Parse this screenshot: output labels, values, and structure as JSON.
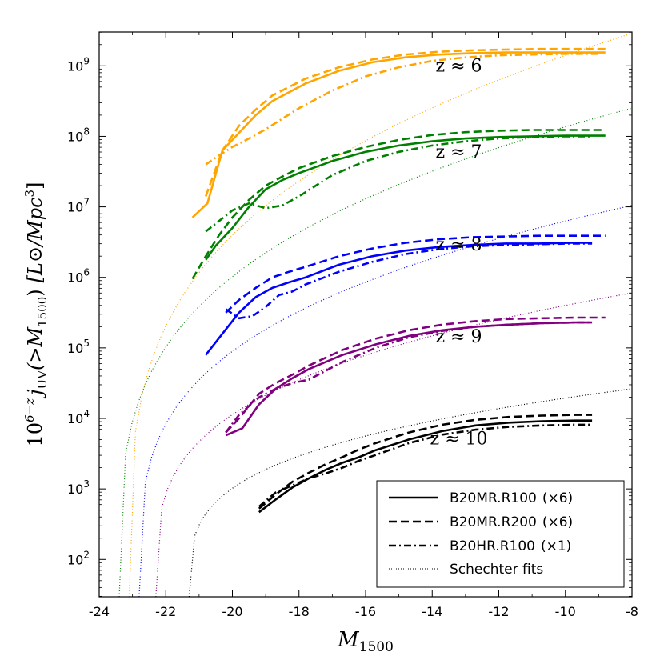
{
  "chart_data": {
    "type": "line",
    "x_axis": {
      "label": "M",
      "label_sub": "1500",
      "range": [
        -24,
        -8
      ],
      "ticks": [
        -24,
        -22,
        -20,
        -18,
        -16,
        -14,
        -12,
        -10,
        -8
      ]
    },
    "y_axis": {
      "scale": "log10",
      "range_log10": [
        1.47,
        9.48
      ],
      "tick_exponents": [
        2,
        3,
        4,
        5,
        6,
        7,
        8,
        9
      ],
      "label_prefix": "10",
      "label_prefix_sup": "6−z",
      "label_j": "j",
      "label_j_sub": "UV",
      "label_arg": "(>M",
      "label_arg_sub": "1500",
      "label_arg_close": ")",
      "label_units": "[L⊙/Mpc",
      "label_units_sup": "3",
      "label_units_close": "]"
    },
    "z_labels": [
      {
        "text": "z ≈ 6",
        "x": -13.2,
        "log10y": 8.92
      },
      {
        "text": "z ≈ 7",
        "x": -13.2,
        "log10y": 7.7
      },
      {
        "text": "z ≈ 8",
        "x": -13.2,
        "log10y": 6.38
      },
      {
        "text": "z ≈ 9",
        "x": -13.2,
        "log10y": 5.08
      },
      {
        "text": "z ≈ 10",
        "x": -13.2,
        "log10y": 3.63
      }
    ],
    "groups": [
      {
        "z": "6",
        "color": "#FFA500",
        "solid": {
          "x": [
            -21.2,
            -20.75,
            -20.3,
            -19.8,
            -19.3,
            -18.8,
            -17.8,
            -16.8,
            -15.8,
            -14.8,
            -13.8,
            -12.8,
            -11.8,
            -10.8,
            -9.8,
            -8.8
          ],
          "log10y": [
            6.85,
            7.05,
            7.8,
            8.05,
            8.3,
            8.5,
            8.75,
            8.93,
            9.05,
            9.12,
            9.16,
            9.18,
            9.19,
            9.19,
            9.19,
            9.19
          ]
        },
        "dashed": {
          "x": [
            -20.8,
            -20.3,
            -19.8,
            -19.3,
            -18.8,
            -17.8,
            -16.8,
            -15.8,
            -14.8,
            -13.8,
            -12.8,
            -11.8,
            -10.8,
            -9.8,
            -8.8
          ],
          "log10y": [
            7.15,
            7.8,
            8.15,
            8.38,
            8.58,
            8.82,
            8.98,
            9.09,
            9.16,
            9.2,
            9.22,
            9.23,
            9.24,
            9.24,
            9.24
          ]
        },
        "dashdot": {
          "x": [
            -20.8,
            -20.5,
            -20.0,
            -19.5,
            -19.0,
            -18.5,
            -18.0,
            -17.0,
            -16.0,
            -15.0,
            -14.0,
            -13.0,
            -12.0,
            -11.0,
            -10.0,
            -9.0
          ],
          "log10y": [
            7.6,
            7.7,
            7.85,
            7.97,
            8.1,
            8.25,
            8.4,
            8.65,
            8.85,
            8.98,
            9.07,
            9.12,
            9.15,
            9.16,
            9.17,
            9.17
          ]
        },
        "schechter": {
          "x_start": -23.1,
          "x_end": -8.0,
          "y_at_start": 1.47,
          "y_at_end": 9.46
        }
      },
      {
        "z": "7",
        "color": "#008000",
        "solid": {
          "x": [
            -20.8,
            -20.5,
            -20.0,
            -19.5,
            -19.0,
            -18.5,
            -18.0,
            -17.0,
            -16.0,
            -15.0,
            -14.0,
            -13.0,
            -12.0,
            -11.0,
            -10.0,
            -9.0,
            -8.8
          ],
          "log10y": [
            6.25,
            6.45,
            6.7,
            7.0,
            7.25,
            7.38,
            7.48,
            7.65,
            7.78,
            7.87,
            7.93,
            7.97,
            7.99,
            8.0,
            8.01,
            8.01,
            8.01
          ]
        },
        "dashed": {
          "x": [
            -21.2,
            -20.8,
            -20.4,
            -20.0,
            -19.5,
            -19.0,
            -18.5,
            -18.0,
            -17.0,
            -16.0,
            -15.0,
            -14.0,
            -13.0,
            -12.0,
            -11.0,
            -10.0,
            -9.0,
            -8.8
          ],
          "log10y": [
            5.98,
            6.3,
            6.6,
            6.85,
            7.1,
            7.3,
            7.43,
            7.55,
            7.72,
            7.85,
            7.95,
            8.02,
            8.06,
            8.08,
            8.09,
            8.09,
            8.09,
            8.09
          ]
        },
        "dashdot": {
          "x": [
            -20.8,
            -20.4,
            -20.0,
            -19.5,
            -19.0,
            -18.5,
            -18.0,
            -17.0,
            -16.0,
            -15.0,
            -14.0,
            -13.0,
            -12.0,
            -11.0,
            -10.0,
            -9.2
          ],
          "log10y": [
            6.65,
            6.8,
            6.95,
            7.05,
            6.98,
            7.02,
            7.15,
            7.45,
            7.65,
            7.78,
            7.87,
            7.93,
            7.97,
            7.99,
            8.0,
            8.0
          ]
        },
        "schechter": {
          "x_start": -23.4,
          "x_end": -8.0,
          "y_at_start": 1.47,
          "y_at_end": 8.4
        }
      },
      {
        "z": "8",
        "color": "#0000FF",
        "solid": {
          "x": [
            -20.8,
            -20.3,
            -19.8,
            -19.3,
            -18.8,
            -18.3,
            -17.8,
            -16.8,
            -15.8,
            -14.8,
            -13.8,
            -12.8,
            -11.8,
            -10.8,
            -9.8,
            -9.2
          ],
          "log10y": [
            4.9,
            5.2,
            5.5,
            5.72,
            5.85,
            5.93,
            6.0,
            6.18,
            6.3,
            6.38,
            6.43,
            6.46,
            6.48,
            6.48,
            6.49,
            6.49
          ]
        },
        "dashed": {
          "x": [
            -20.2,
            -19.8,
            -19.3,
            -18.8,
            -18.3,
            -17.8,
            -16.8,
            -15.8,
            -14.8,
            -13.8,
            -12.8,
            -11.8,
            -10.8,
            -9.8,
            -8.8
          ],
          "log10y": [
            5.5,
            5.68,
            5.85,
            6.0,
            6.08,
            6.15,
            6.3,
            6.41,
            6.49,
            6.54,
            6.57,
            6.58,
            6.59,
            6.59,
            6.59
          ]
        },
        "dashdot": {
          "x": [
            -20.2,
            -19.8,
            -19.4,
            -19.0,
            -18.6,
            -18.2,
            -17.8,
            -16.8,
            -15.8,
            -14.8,
            -13.8,
            -12.8,
            -11.8,
            -10.8,
            -9.8,
            -9.2
          ],
          "log10y": [
            5.55,
            5.42,
            5.45,
            5.58,
            5.75,
            5.8,
            5.9,
            6.08,
            6.22,
            6.33,
            6.4,
            6.44,
            6.46,
            6.47,
            6.48,
            6.48
          ]
        },
        "schechter": {
          "x_start": -22.8,
          "x_end": -8.0,
          "y_at_start": 1.47,
          "y_at_end": 7.02
        }
      },
      {
        "z": "9",
        "color": "#800080",
        "solid": {
          "x": [
            -20.2,
            -19.7,
            -19.2,
            -18.7,
            -18.2,
            -17.7,
            -16.7,
            -15.7,
            -14.7,
            -13.7,
            -12.7,
            -11.7,
            -10.7,
            -9.7,
            -9.2
          ],
          "log10y": [
            3.76,
            3.86,
            4.2,
            4.42,
            4.57,
            4.7,
            4.9,
            5.05,
            5.17,
            5.25,
            5.3,
            5.33,
            5.35,
            5.36,
            5.36
          ]
        },
        "dashed": {
          "x": [
            -20.2,
            -19.8,
            -19.2,
            -18.7,
            -18.2,
            -17.7,
            -16.7,
            -15.7,
            -14.7,
            -13.7,
            -12.7,
            -11.7,
            -10.7,
            -9.7,
            -8.8
          ],
          "log10y": [
            3.8,
            4.0,
            4.35,
            4.5,
            4.62,
            4.75,
            4.97,
            5.13,
            5.25,
            5.33,
            5.38,
            5.41,
            5.42,
            5.43,
            5.43
          ]
        },
        "dashdot": {
          "x": [
            -20.2,
            -19.8,
            -19.2,
            -18.7,
            -18.2,
            -17.7,
            -16.7,
            -15.7,
            -14.7,
            -13.7,
            -12.7,
            -11.7,
            -10.7,
            -9.7,
            -9.2
          ],
          "log10y": [
            3.8,
            4.05,
            4.3,
            4.42,
            4.5,
            4.55,
            4.8,
            5.0,
            5.15,
            5.24,
            5.3,
            5.33,
            5.35,
            5.36,
            5.36
          ]
        },
        "schechter": {
          "x_start": -22.3,
          "x_end": -8.0,
          "y_at_start": 1.47,
          "y_at_end": 5.78
        }
      },
      {
        "z": "10",
        "color": "#000000",
        "solid": {
          "x": [
            -19.2,
            -18.7,
            -18.2,
            -17.7,
            -17.2,
            -16.7,
            -16.2,
            -15.7,
            -14.7,
            -13.7,
            -12.7,
            -11.7,
            -10.7,
            -9.7,
            -9.2
          ],
          "log10y": [
            2.67,
            2.85,
            3.02,
            3.15,
            3.27,
            3.37,
            3.45,
            3.55,
            3.7,
            3.82,
            3.9,
            3.94,
            3.96,
            3.97,
            3.97
          ]
        },
        "dashed": {
          "x": [
            -19.2,
            -18.7,
            -18.2,
            -17.7,
            -17.2,
            -16.7,
            -16.2,
            -15.7,
            -14.7,
            -13.7,
            -12.7,
            -11.7,
            -10.7,
            -9.7,
            -9.2
          ],
          "log10y": [
            2.72,
            2.92,
            3.1,
            3.23,
            3.35,
            3.45,
            3.56,
            3.65,
            3.8,
            3.91,
            3.98,
            4.02,
            4.04,
            4.05,
            4.05
          ]
        },
        "dashdot": {
          "x": [
            -19.2,
            -18.7,
            -18.2,
            -17.7,
            -17.2,
            -16.7,
            -16.2,
            -15.7,
            -14.7,
            -13.7,
            -12.7,
            -11.7,
            -10.7,
            -9.7,
            -9.2
          ],
          "log10y": [
            2.75,
            2.95,
            3.05,
            3.15,
            3.22,
            3.3,
            3.4,
            3.48,
            3.65,
            3.77,
            3.84,
            3.88,
            3.9,
            3.91,
            3.91
          ]
        },
        "schechter": {
          "x_start": -21.3,
          "x_end": -8.0,
          "y_at_start": 1.47,
          "y_at_end": 4.42
        }
      }
    ],
    "legend": {
      "position": "bottom-right",
      "entries": [
        {
          "style": "solid",
          "label": "B20MR.R100",
          "factor": "(×6)"
        },
        {
          "style": "dashed",
          "label": "B20MR.R200",
          "factor": "(×6)"
        },
        {
          "style": "dashdot",
          "label": "B20HR.R100",
          "factor": "(×1)"
        },
        {
          "style": "dotted",
          "label": "Schechter fits",
          "factor": ""
        }
      ]
    }
  }
}
